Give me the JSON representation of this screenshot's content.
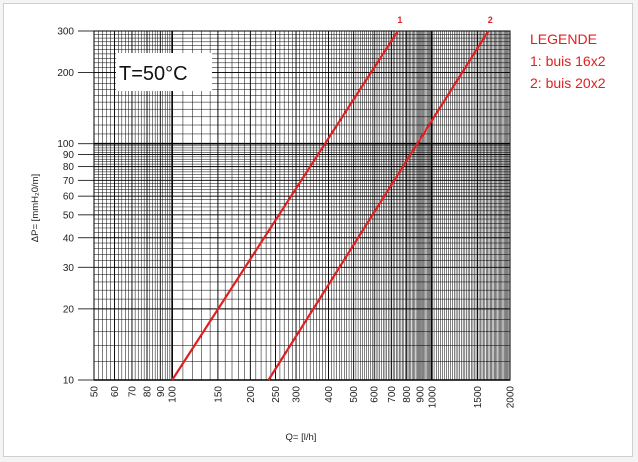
{
  "chart_data": {
    "type": "line",
    "x_scale": "log",
    "y_scale": "log",
    "xlim": [
      50,
      2000
    ],
    "ylim": [
      10,
      300
    ],
    "xlabel": "Q= [l/h]",
    "ylabel": "ΔP= [mmH₂0/m]",
    "x_ticks": [
      50,
      60,
      70,
      80,
      90,
      100,
      150,
      200,
      250,
      300,
      400,
      500,
      600,
      700,
      800,
      900,
      1000,
      1500,
      2000
    ],
    "y_ticks": [
      10,
      20,
      30,
      40,
      50,
      60,
      70,
      80,
      90,
      100,
      200,
      300
    ],
    "grid": true,
    "annotation": "T=50°C",
    "legend": {
      "title": "LEGENDE",
      "entries": [
        "1: buis 16x2",
        "2: buis 20x2"
      ],
      "placement": "right"
    },
    "series": [
      {
        "label": "1",
        "color": "#e02020",
        "x": [
          100,
          740
        ],
        "y": [
          10,
          300
        ]
      },
      {
        "label": "2",
        "color": "#e02020",
        "x": [
          235,
          1650
        ],
        "y": [
          10,
          300
        ]
      }
    ]
  }
}
